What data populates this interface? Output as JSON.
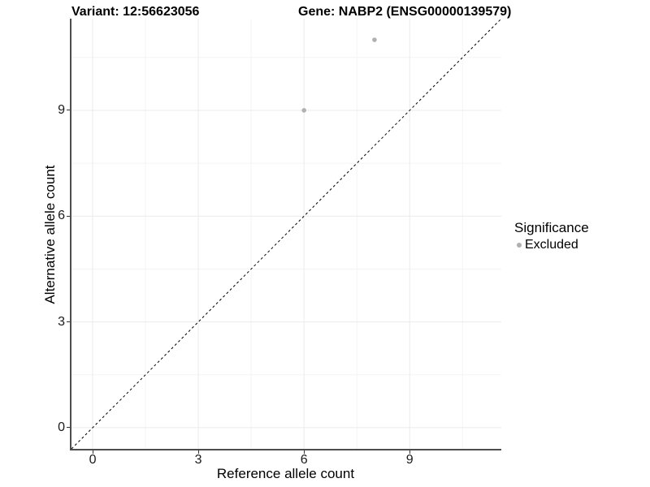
{
  "header": {
    "variant_title": "Variant: 12:56623056",
    "gene_title": "Gene: NABP2 (ENSG00000139579)"
  },
  "axes": {
    "x": {
      "label": "Reference allele count",
      "ticks": [
        "0",
        "3",
        "6",
        "9"
      ]
    },
    "y": {
      "label": "Alternative allele count",
      "ticks": [
        "0",
        "3",
        "6",
        "9"
      ]
    }
  },
  "legend": {
    "title": "Significance",
    "items": [
      {
        "label": "Excluded",
        "marker": "circle",
        "color": "#b0b0b0"
      }
    ]
  },
  "chart_data": {
    "type": "scatter",
    "title": "Variant: 12:56623056 | Gene: NABP2 (ENSG00000139579)",
    "xlabel": "Reference allele count",
    "ylabel": "Alternative allele count",
    "xlim": [
      -0.6,
      11.6
    ],
    "ylim": [
      -0.6,
      11.6
    ],
    "x_ticks": [
      0,
      3,
      6,
      9
    ],
    "y_ticks": [
      0,
      3,
      6,
      9
    ],
    "x_minor_ticks": [
      1.5,
      4.5,
      7.5,
      10.5
    ],
    "y_minor_ticks": [
      1.5,
      4.5,
      7.5,
      10.5
    ],
    "grid": "major+minor",
    "legend_position": "right",
    "series": [
      {
        "name": "Excluded",
        "color": "#b0b0b0",
        "points": [
          [
            6,
            9
          ],
          [
            8,
            11
          ]
        ]
      }
    ],
    "reference_line": {
      "type": "identity",
      "equation": "y = x",
      "style": "dashed",
      "color": "#000000"
    }
  },
  "colors": {
    "background": "#ffffff",
    "axis_line": "#4d4d4d",
    "tick_mark": "#333333",
    "grid_major": "#ebebeb",
    "grid_minor": "#f4f4f4",
    "point": "#b0b0b0",
    "text": "#000000"
  }
}
